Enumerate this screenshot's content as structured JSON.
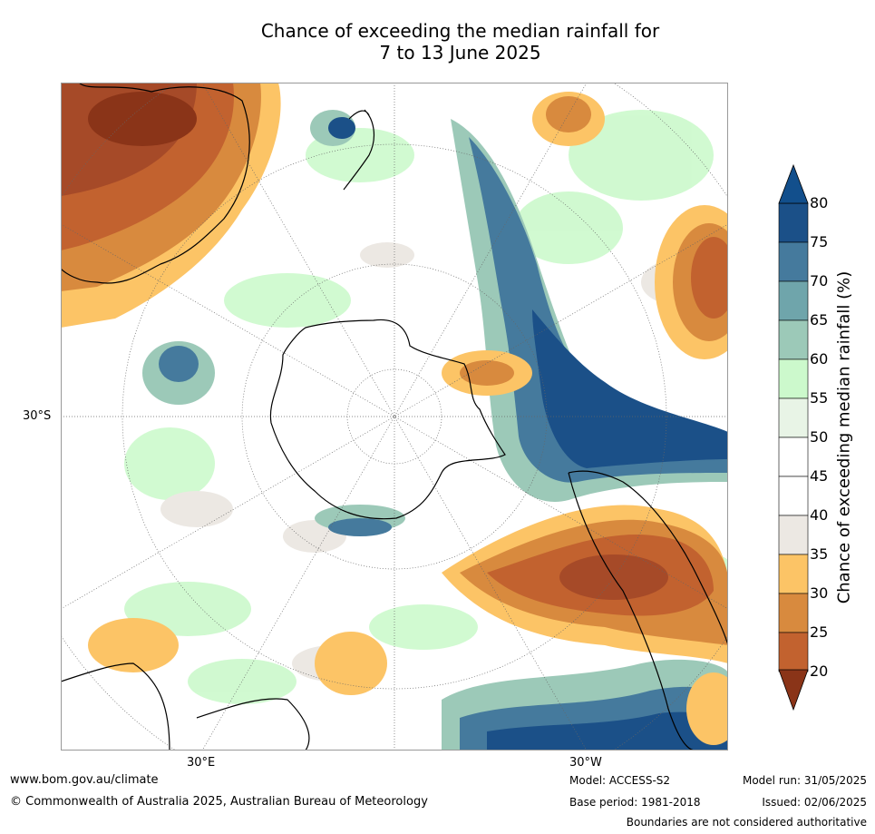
{
  "title": {
    "line1": "Chance of exceeding the median rainfall for",
    "line2": "7 to 13 June 2025"
  },
  "map": {
    "lat_label": "30°S",
    "lon_labels": [
      "30°E",
      "30°W"
    ],
    "projection": "south-polar-stereographic"
  },
  "colorbar": {
    "label": "Chance of exceeding median rainfall (%)",
    "ticks": [
      "80",
      "75",
      "70",
      "65",
      "60",
      "55",
      "50",
      "45",
      "40",
      "35",
      "30",
      "25",
      "20"
    ],
    "bins": [
      {
        "range": "75-80",
        "color": "#1b5088"
      },
      {
        "range": "70-75",
        "color": "#457a9d"
      },
      {
        "range": "65-70",
        "color": "#6fa5ab"
      },
      {
        "range": "60-65",
        "color": "#9cc9b8"
      },
      {
        "range": "55-60",
        "color": "#ccf9cc"
      },
      {
        "range": "50-55",
        "color": "#e8f4e6"
      },
      {
        "range": "45-50",
        "color": "#ffffff"
      },
      {
        "range": "40-45",
        "color": "#ffffff"
      },
      {
        "range": "35-40",
        "color": "#ece8e3"
      },
      {
        "range": "30-35",
        "color": "#fcc466"
      },
      {
        "range": "25-30",
        "color": "#d88a3e"
      },
      {
        "range": "20-25",
        "color": "#c2622f"
      },
      {
        "range": "15-20",
        "color": "#a64a28"
      }
    ],
    "max_arrow_color": "#124f8c",
    "min_arrow_color": "#8a3418"
  },
  "footer": {
    "website": "www.bom.gov.au/climate",
    "copyright": "© Commonwealth of Australia 2025, Australian Bureau of Meteorology",
    "model": "Model: ACCESS-S2",
    "base_period": "Base period: 1981-2018",
    "model_run": "Model run: 31/05/2025",
    "issued": "Issued: 02/06/2025",
    "boundaries_note": "Boundaries are not considered authoritative"
  }
}
